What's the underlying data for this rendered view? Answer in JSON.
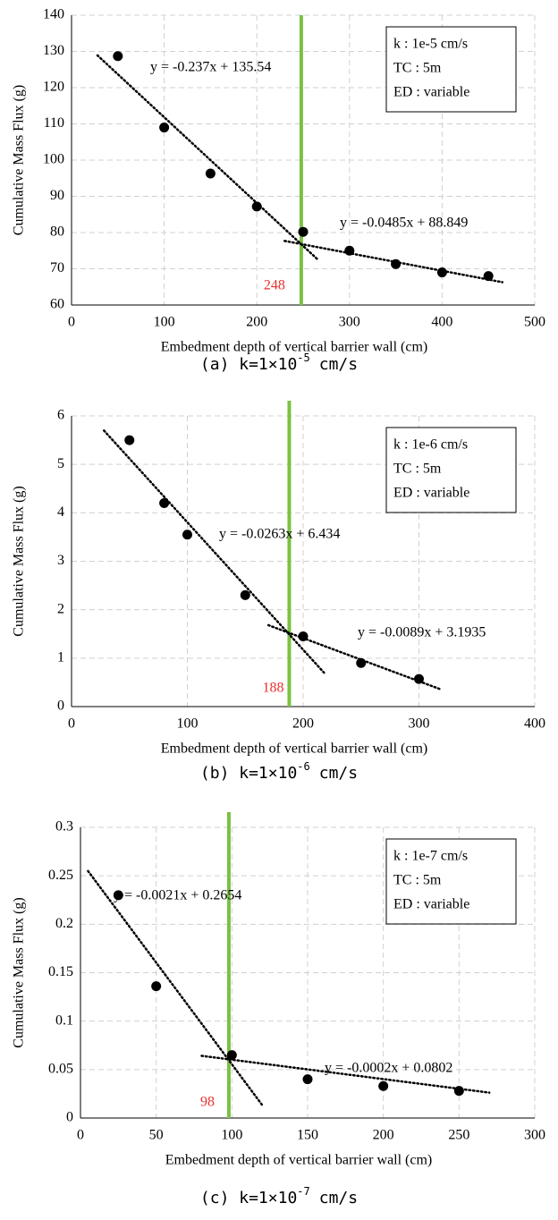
{
  "chart_data": [
    {
      "type": "scatter",
      "x_label": "Embedment depth of vertical barrier wall (cm)",
      "y_label": "Cumulative Mass Flux (g)",
      "x": [
        50,
        100,
        150,
        200,
        250,
        300,
        350,
        400,
        450
      ],
      "values": [
        128.7,
        109,
        96.3,
        87.2,
        80.2,
        75,
        71.3,
        69,
        68
      ],
      "color": "#000000",
      "xlim": [
        0,
        500
      ],
      "xticks": [
        0,
        100,
        200,
        300,
        400,
        500
      ],
      "ylim": [
        60,
        140
      ],
      "yticks": [
        60,
        70,
        80,
        90,
        100,
        110,
        120,
        130,
        140
      ],
      "grid": true,
      "trendlines": [
        {
          "label": "y = -0.237x + 135.54",
          "slope": -0.237,
          "intercept": 135.54,
          "x_range": [
            28,
            265
          ]
        },
        {
          "label": "y = -0.0485x + 88.849",
          "slope": -0.0485,
          "intercept": 88.849,
          "x_range": [
            230,
            465
          ]
        }
      ],
      "cutoff": 248,
      "cutoff_color": "#7ac143",
      "annotation_box": [
        "k : 1e-5 cm/s",
        "TC : 5m",
        "ED : variable"
      ],
      "caption": {
        "prefix": "(a) k=1×10",
        "exponent": "-5",
        "unit": "cm/s"
      }
    },
    {
      "type": "scatter",
      "x_label": "Embedment depth of vertical barrier wall (cm)",
      "y_label": "Cumulative Mass Flux (g)",
      "x": [
        50,
        80,
        100,
        150,
        200,
        250,
        300
      ],
      "values": [
        5.5,
        4.2,
        3.55,
        2.3,
        1.45,
        0.9,
        0.57
      ],
      "color": "#000000",
      "xlim": [
        0,
        400
      ],
      "xticks": [
        0,
        100,
        200,
        300,
        400
      ],
      "ylim": [
        0,
        6
      ],
      "yticks": [
        0,
        1,
        2,
        3,
        4,
        5,
        6
      ],
      "grid": true,
      "trendlines": [
        {
          "label": "y = -0.0263x + 6.434",
          "slope": -0.0263,
          "intercept": 6.434,
          "x_range": [
            28,
            218
          ]
        },
        {
          "label": "y = -0.0089x + 3.1935",
          "slope": -0.0089,
          "intercept": 3.1935,
          "x_range": [
            170,
            318
          ]
        }
      ],
      "cutoff": 188,
      "cutoff_color": "#7ac143",
      "annotation_box": [
        "k : 1e-6 cm/s",
        "TC : 5m",
        "ED : variable"
      ],
      "caption": {
        "prefix": "(b) k=1×10",
        "exponent": "-6",
        "unit": "cm/s"
      }
    },
    {
      "type": "scatter",
      "x_label": "Embedment depth of vertical barrier wall (cm)",
      "y_label": "Cumulative Mass Flux (g)",
      "x": [
        25,
        50,
        100,
        150,
        200,
        250
      ],
      "values": [
        0.23,
        0.136,
        0.065,
        0.04,
        0.033,
        0.028
      ],
      "color": "#000000",
      "xlim": [
        0,
        300
      ],
      "xticks": [
        0,
        50,
        100,
        150,
        200,
        250,
        300
      ],
      "ylim": [
        0,
        0.3
      ],
      "yticks": [
        0,
        0.05,
        0.1,
        0.15,
        0.2,
        0.25,
        0.3
      ],
      "grid": true,
      "trendlines": [
        {
          "label": "y = -0.0021x + 0.2654",
          "slope": -0.0021,
          "intercept": 0.2654,
          "x_range": [
            5,
            120
          ]
        },
        {
          "label": "y = -0.0002x + 0.0802",
          "slope": -0.0002,
          "intercept": 0.0802,
          "x_range": [
            80,
            270
          ]
        }
      ],
      "cutoff": 98,
      "cutoff_color": "#7ac143",
      "annotation_box": [
        "k : 1e-7 cm/s",
        "TC : 5m",
        "ED : variable"
      ],
      "caption": {
        "prefix": "(c) k=1×10",
        "exponent": "-7",
        "unit": "cm/s"
      }
    }
  ]
}
